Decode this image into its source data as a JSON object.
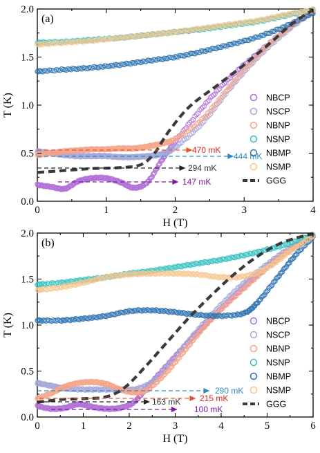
{
  "chart_data": [
    {
      "type": "scatter",
      "panel_label": "(a)",
      "xlabel": "H (T)",
      "ylabel": "T (K)",
      "xlim": [
        0,
        4
      ],
      "ylim": [
        0,
        2.0
      ],
      "xticks": [
        "0",
        "1",
        "2",
        "3",
        "4"
      ],
      "yticks": [
        "0.0",
        "0.5",
        "1.0",
        "1.5",
        "2.0"
      ],
      "legend_position": "right",
      "series": [
        {
          "name": "NBCP",
          "color": "#b06fd6",
          "style": "markers",
          "x": [
            0,
            0.2,
            0.4,
            0.6,
            0.8,
            1.0,
            1.2,
            1.4,
            1.6,
            1.8,
            2.0,
            2.4,
            2.8,
            3.2,
            3.6,
            4.0
          ],
          "y": [
            0.17,
            0.15,
            0.13,
            0.21,
            0.24,
            0.24,
            0.2,
            0.14,
            0.2,
            0.42,
            0.62,
            0.98,
            1.29,
            1.54,
            1.78,
            1.98
          ]
        },
        {
          "name": "NSCP",
          "color": "#a5a6d8",
          "style": "markers",
          "x": [
            0,
            0.2,
            0.4,
            0.6,
            0.8,
            1.0,
            1.2,
            1.4,
            1.6,
            1.8,
            2.0,
            2.4,
            2.8,
            3.2,
            3.6,
            4.0
          ],
          "y": [
            0.52,
            0.5,
            0.48,
            0.47,
            0.47,
            0.47,
            0.46,
            0.46,
            0.47,
            0.49,
            0.56,
            0.82,
            1.18,
            1.5,
            1.76,
            1.98
          ]
        },
        {
          "name": "NBNP",
          "color": "#f5a48a",
          "style": "markers",
          "x": [
            0,
            0.2,
            0.4,
            0.6,
            0.8,
            1.0,
            1.2,
            1.4,
            1.6,
            1.8,
            2.0,
            2.4,
            2.8,
            3.2,
            3.6,
            4.0
          ],
          "y": [
            0.48,
            0.5,
            0.52,
            0.53,
            0.54,
            0.54,
            0.55,
            0.55,
            0.57,
            0.6,
            0.65,
            0.86,
            1.2,
            1.52,
            1.78,
            1.98
          ]
        },
        {
          "name": "NSNP",
          "color": "#36c2bf",
          "style": "markers",
          "x": [
            0,
            0.4,
            0.8,
            1.2,
            1.6,
            2.0,
            2.4,
            2.8,
            3.2,
            3.6,
            4.0
          ],
          "y": [
            1.65,
            1.66,
            1.68,
            1.7,
            1.73,
            1.76,
            1.79,
            1.83,
            1.87,
            1.93,
            1.99
          ]
        },
        {
          "name": "NBMP",
          "color": "#2d72b0",
          "style": "markers",
          "x": [
            0,
            0.4,
            0.8,
            1.2,
            1.6,
            2.0,
            2.4,
            2.8,
            3.2,
            3.6,
            4.0
          ],
          "y": [
            1.35,
            1.37,
            1.39,
            1.42,
            1.46,
            1.5,
            1.56,
            1.63,
            1.71,
            1.82,
            1.96
          ]
        },
        {
          "name": "NSMP",
          "color": "#f7c58e",
          "style": "markers",
          "x": [
            0,
            0.4,
            0.8,
            1.2,
            1.6,
            2.0,
            2.4,
            2.8,
            3.2,
            3.6,
            4.0
          ],
          "y": [
            1.63,
            1.65,
            1.67,
            1.7,
            1.73,
            1.76,
            1.8,
            1.84,
            1.88,
            1.94,
            1.99
          ]
        },
        {
          "name": "GGG",
          "color": "#3a3a3a",
          "style": "dash",
          "x": [
            0,
            0.4,
            0.8,
            1.2,
            1.5,
            1.7,
            1.9,
            2.2,
            2.6,
            3.0,
            3.4,
            3.7,
            4.0
          ],
          "y": [
            0.3,
            0.32,
            0.34,
            0.35,
            0.38,
            0.5,
            0.72,
            0.98,
            1.2,
            1.42,
            1.66,
            1.85,
            1.99
          ]
        }
      ],
      "annotations": [
        {
          "text": "470 mK",
          "value": 0.47,
          "x_start": 0.0,
          "x_end": 2.25,
          "color": "#e8542a",
          "text_color": "#e0201a"
        },
        {
          "text": "444 mK",
          "value": 0.444,
          "x_start": 0.0,
          "x_end": 2.85,
          "color": "#2e8bc0",
          "text_color": "#2e8bc0"
        },
        {
          "text": "294 mK",
          "value": 0.294,
          "x_start": 0.0,
          "x_end": 2.15,
          "color": "#222222",
          "text_color": "#333333"
        },
        {
          "text": "147 mK",
          "value": 0.147,
          "x_start": 0.3,
          "x_end": 2.05,
          "color": "#7a1a9e",
          "text_color": "#7a1a9e"
        }
      ]
    },
    {
      "type": "scatter",
      "panel_label": "(b)",
      "xlabel": "H (T)",
      "ylabel": "T (K)",
      "xlim": [
        0,
        6
      ],
      "ylim": [
        0,
        2.0
      ],
      "xticks": [
        "0",
        "1",
        "2",
        "3",
        "4",
        "5",
        "6"
      ],
      "yticks": [
        "0.0",
        "0.5",
        "1.0",
        "1.5",
        "2.0"
      ],
      "legend_position": "right",
      "series": [
        {
          "name": "NBCP",
          "color": "#b06fd6",
          "style": "markers",
          "x": [
            0,
            0.3,
            0.6,
            0.9,
            1.2,
            1.5,
            1.8,
            2.1,
            2.4,
            2.8,
            3.2,
            3.6,
            4.0,
            4.5,
            5.0,
            5.5,
            6.0
          ],
          "y": [
            0.12,
            0.09,
            0.1,
            0.14,
            0.11,
            0.09,
            0.1,
            0.16,
            0.33,
            0.55,
            0.77,
            0.98,
            1.18,
            1.42,
            1.64,
            1.82,
            1.97
          ]
        },
        {
          "name": "NSCP",
          "color": "#a5a6d8",
          "style": "markers",
          "x": [
            0,
            0.3,
            0.6,
            1.0,
            1.4,
            1.8,
            2.2,
            2.6,
            3.0,
            3.5,
            4.0,
            4.5,
            5.0,
            5.5,
            6.0
          ],
          "y": [
            0.37,
            0.34,
            0.31,
            0.3,
            0.3,
            0.3,
            0.31,
            0.42,
            0.65,
            0.95,
            1.22,
            1.46,
            1.66,
            1.84,
            1.97
          ]
        },
        {
          "name": "NBNP",
          "color": "#f5a48a",
          "style": "markers",
          "x": [
            0,
            0.3,
            0.6,
            0.9,
            1.2,
            1.5,
            1.8,
            2.1,
            2.4,
            2.8,
            3.2,
            3.6,
            4.0,
            4.5,
            5.0,
            5.5,
            6.0
          ],
          "y": [
            0.2,
            0.26,
            0.33,
            0.37,
            0.38,
            0.36,
            0.3,
            0.27,
            0.3,
            0.48,
            0.72,
            0.96,
            1.17,
            1.4,
            1.62,
            1.82,
            1.97
          ]
        },
        {
          "name": "NSNP",
          "color": "#36c2bf",
          "style": "markers",
          "x": [
            0,
            0.5,
            1.0,
            1.5,
            2.0,
            2.5,
            3.0,
            3.5,
            4.0,
            4.5,
            5.0,
            5.5,
            6.0
          ],
          "y": [
            1.44,
            1.46,
            1.49,
            1.52,
            1.56,
            1.59,
            1.63,
            1.67,
            1.71,
            1.76,
            1.82,
            1.89,
            1.98
          ]
        },
        {
          "name": "NBMP",
          "color": "#2d72b0",
          "style": "markers",
          "x": [
            0,
            0.5,
            1.0,
            1.5,
            2.0,
            2.5,
            3.0,
            3.5,
            4.0,
            4.5,
            4.8,
            5.2,
            5.6,
            6.0
          ],
          "y": [
            1.05,
            1.05,
            1.07,
            1.1,
            1.15,
            1.16,
            1.14,
            1.11,
            1.1,
            1.13,
            1.25,
            1.5,
            1.75,
            1.96
          ]
        },
        {
          "name": "NSMP",
          "color": "#f7c58e",
          "style": "markers",
          "x": [
            0,
            0.5,
            1.0,
            1.5,
            2.0,
            2.5,
            3.0,
            3.5,
            4.0,
            4.5,
            5.0,
            5.5,
            6.0
          ],
          "y": [
            1.38,
            1.41,
            1.46,
            1.52,
            1.55,
            1.56,
            1.56,
            1.55,
            1.52,
            1.53,
            1.62,
            1.8,
            1.97
          ]
        },
        {
          "name": "GGG",
          "color": "#3a3a3a",
          "style": "dash",
          "x": [
            0,
            0.5,
            1.0,
            1.5,
            1.9,
            2.3,
            2.8,
            3.3,
            3.8,
            4.3,
            4.8,
            5.3,
            5.8,
            6.0
          ],
          "y": [
            0.16,
            0.19,
            0.2,
            0.22,
            0.32,
            0.52,
            0.8,
            1.08,
            1.33,
            1.56,
            1.75,
            1.89,
            1.97,
            1.99
          ]
        }
      ],
      "annotations": [
        {
          "text": "290 mK",
          "value": 0.29,
          "x_start": 0.0,
          "x_end": 3.75,
          "color": "#2e8bc0",
          "text_color": "#2e8bc0"
        },
        {
          "text": "215 mK",
          "value": 0.215,
          "x_start": 0.05,
          "x_end": 3.45,
          "color": "#e8542a",
          "text_color": "#e0201a"
        },
        {
          "text": "163 mK",
          "value": 0.163,
          "x_start": 0.0,
          "x_end": 2.45,
          "color": "#222222",
          "text_color": "#333333"
        },
        {
          "text": "100 mK",
          "value": 0.1,
          "x_start": 0.3,
          "x_end": 3.05,
          "color": "#7a1a9e",
          "text_color": "#7a1a9e"
        }
      ]
    }
  ]
}
